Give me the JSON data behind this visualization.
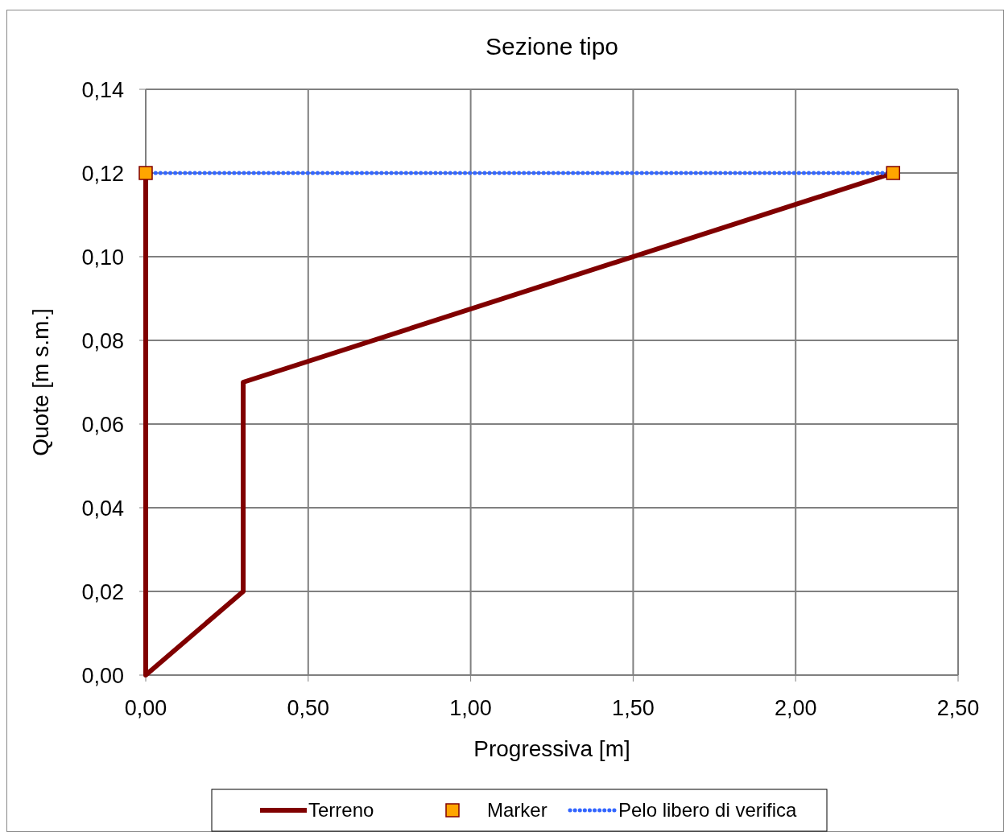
{
  "chart_data": {
    "type": "line",
    "title": "Sezione tipo",
    "xlabel": "Progressiva [m]",
    "ylabel": "Quote [m s.m.]",
    "xlim": [
      0,
      2.5
    ],
    "ylim": [
      0,
      0.14
    ],
    "xticks": [
      {
        "value": 0,
        "label": "0,00"
      },
      {
        "value": 0.5,
        "label": "0,50"
      },
      {
        "value": 1,
        "label": "1,00"
      },
      {
        "value": 1.5,
        "label": "1,50"
      },
      {
        "value": 2,
        "label": "2,00"
      },
      {
        "value": 2.5,
        "label": "2,50"
      }
    ],
    "yticks": [
      {
        "value": 0,
        "label": "0,00"
      },
      {
        "value": 0.02,
        "label": "0,02"
      },
      {
        "value": 0.04,
        "label": "0,04"
      },
      {
        "value": 0.06,
        "label": "0,06"
      },
      {
        "value": 0.08,
        "label": "0,08"
      },
      {
        "value": 0.1,
        "label": "0,10"
      },
      {
        "value": 0.12,
        "label": "0,12"
      },
      {
        "value": 0.14,
        "label": "0,14"
      }
    ],
    "grid": true,
    "legend": "bottom",
    "series": [
      {
        "name": "Terreno",
        "color": "#800000",
        "line_style": "solid",
        "marker": "none",
        "x": [
          0,
          0,
          0.3,
          0.3,
          2.3
        ],
        "values": [
          0.12,
          0,
          0.02,
          0.07,
          0.12
        ]
      },
      {
        "name": "Marker",
        "type": "scatter",
        "color": "#ffa500",
        "marker": "square",
        "x": [
          0,
          2.3
        ],
        "values": [
          0.12,
          0.12
        ]
      },
      {
        "name": "Pelo libero di verifica",
        "color": "#3366ff",
        "line_style": "dotted",
        "marker": "none",
        "x": [
          0,
          2.3
        ],
        "values": [
          0.12,
          0.12
        ]
      }
    ]
  }
}
